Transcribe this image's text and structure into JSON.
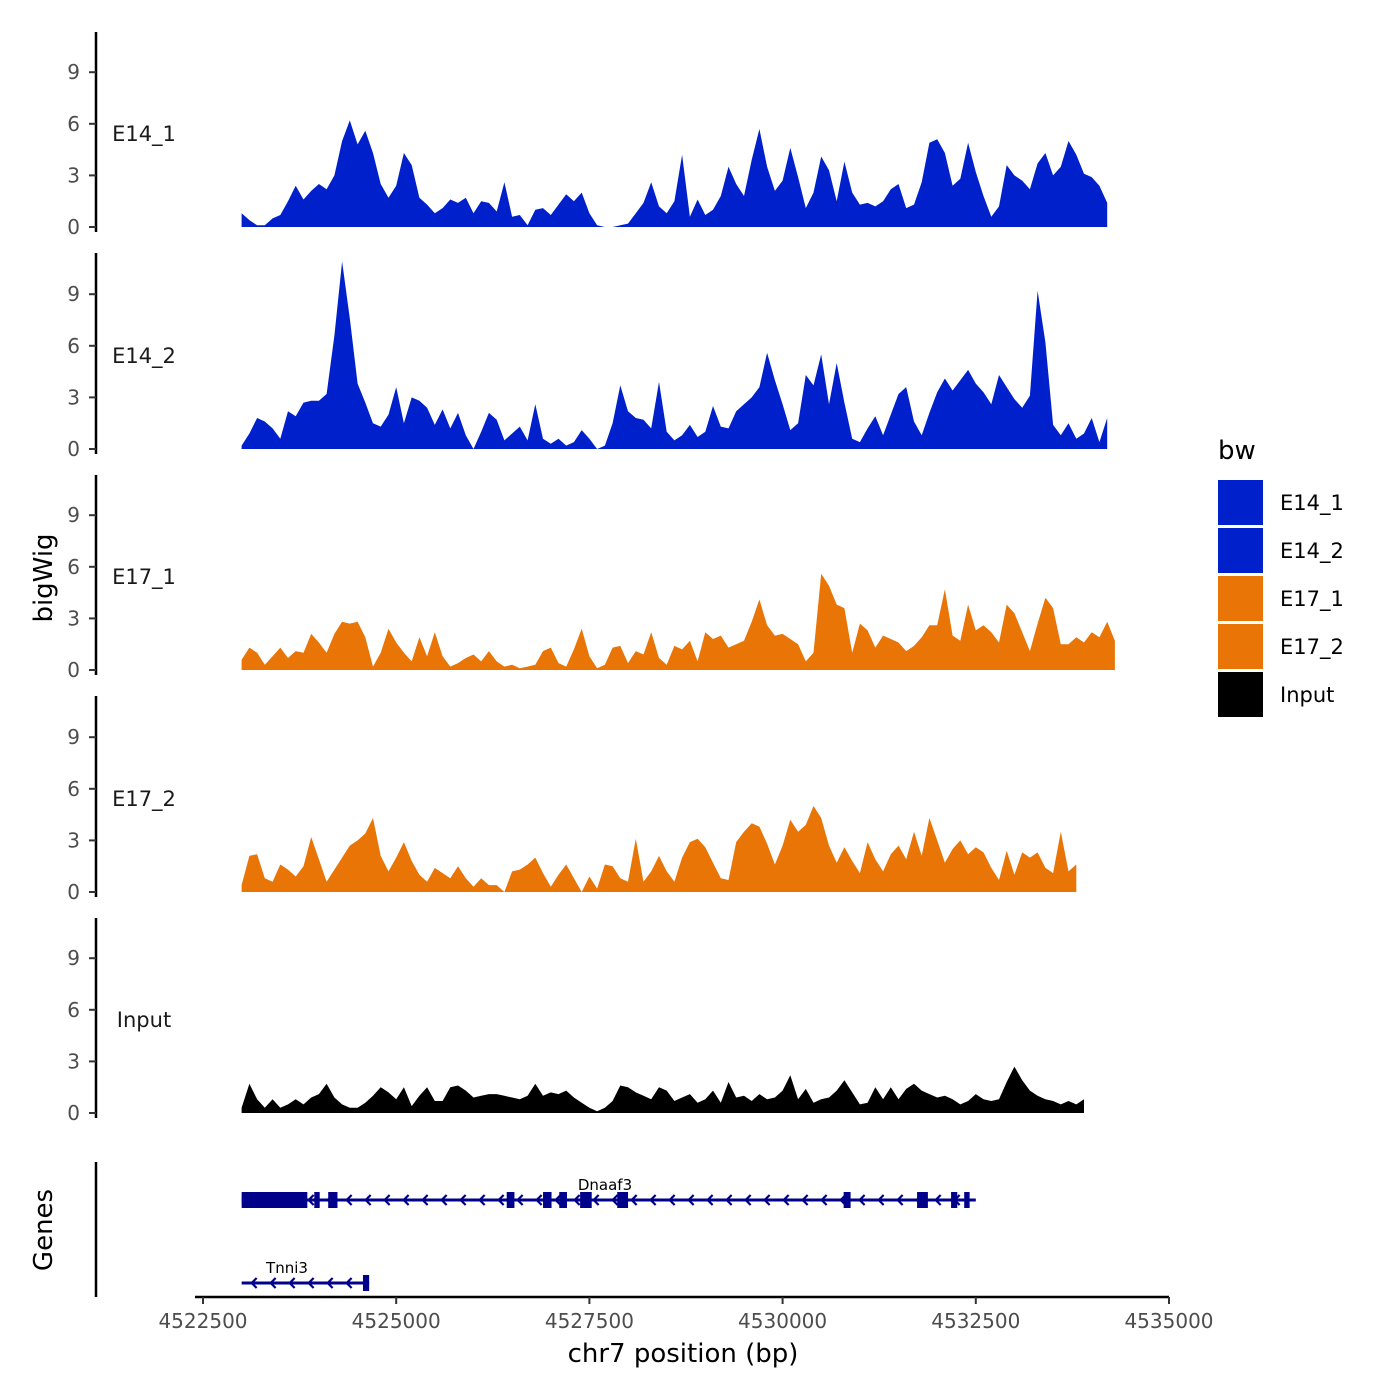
{
  "chart_data": {
    "type": "area",
    "chromosome": "chr7",
    "xlabel": "chr7 position (bp)",
    "ylabel": "bigWig",
    "genes_label": "Genes",
    "xlim": [
      4522500,
      4535000
    ],
    "x_ticks": [
      4522500,
      4525000,
      4527500,
      4530000,
      4532500,
      4535000
    ],
    "x_tick_labels": [
      "4522500",
      "4525000",
      "4527500",
      "4530000",
      "4532500",
      "4535000"
    ],
    "ylim": [
      0,
      11.5
    ],
    "y_ticks": [
      0,
      3,
      6,
      9
    ],
    "y_tick_labels": [
      "0",
      "3",
      "6",
      "9"
    ],
    "x_start": 4523000,
    "x_step": 100,
    "legend": {
      "title": "bw",
      "items": [
        {
          "name": "E14_1",
          "color": "#0020cc"
        },
        {
          "name": "E14_2",
          "color": "#0020cc"
        },
        {
          "name": "E17_1",
          "color": "#e87506"
        },
        {
          "name": "E17_2",
          "color": "#e87506"
        },
        {
          "name": "Input",
          "color": "#000000"
        }
      ]
    },
    "series": [
      {
        "name": "E14_1",
        "color": "#0020cc",
        "values": [
          0.8,
          0.4,
          0.1,
          0.1,
          0.5,
          0.7,
          1.5,
          2.4,
          1.6,
          2.1,
          2.5,
          2.2,
          3.0,
          5.0,
          6.2,
          4.8,
          5.6,
          4.3,
          2.5,
          1.7,
          2.4,
          4.3,
          3.6,
          1.7,
          1.3,
          0.8,
          1.1,
          1.6,
          1.4,
          1.7,
          0.8,
          1.5,
          1.4,
          0.9,
          2.6,
          0.6,
          0.7,
          0.1,
          1.0,
          1.1,
          0.7,
          1.3,
          1.9,
          1.5,
          2.0,
          0.8,
          0.1,
          0.0,
          0.0,
          0.1,
          0.2,
          0.8,
          1.4,
          2.6,
          1.2,
          0.8,
          1.5,
          4.2,
          0.6,
          1.6,
          0.7,
          1.0,
          1.8,
          3.5,
          2.5,
          1.8,
          3.9,
          5.7,
          3.5,
          2.1,
          2.7,
          4.6,
          2.9,
          1.1,
          2.0,
          4.1,
          3.3,
          1.5,
          3.8,
          2.0,
          1.3,
          1.4,
          1.2,
          1.5,
          2.2,
          2.5,
          1.1,
          1.3,
          2.6,
          4.9,
          5.1,
          4.3,
          2.4,
          2.8,
          4.9,
          3.2,
          1.8,
          0.6,
          1.2,
          3.6,
          3.0,
          2.7,
          2.2,
          3.7,
          4.3,
          3.0,
          3.5,
          5.0,
          4.2,
          3.1,
          2.9,
          2.4,
          1.4
        ]
      },
      {
        "name": "E14_2",
        "color": "#0020cc",
        "values": [
          0.2,
          0.9,
          1.8,
          1.6,
          1.2,
          0.6,
          2.2,
          1.9,
          2.7,
          2.8,
          2.8,
          3.2,
          6.6,
          10.9,
          7.6,
          3.8,
          2.7,
          1.5,
          1.3,
          2.0,
          3.6,
          1.5,
          3.0,
          2.8,
          2.4,
          1.4,
          2.3,
          1.2,
          2.1,
          0.8,
          0.0,
          1.0,
          2.1,
          1.7,
          0.5,
          0.9,
          1.3,
          0.5,
          2.6,
          0.6,
          0.3,
          0.6,
          0.2,
          0.4,
          1.1,
          0.6,
          0.0,
          0.2,
          1.5,
          3.7,
          2.2,
          1.8,
          1.7,
          1.2,
          3.9,
          1.0,
          0.5,
          0.8,
          1.4,
          0.7,
          1.0,
          2.5,
          1.3,
          1.2,
          2.2,
          2.6,
          3.0,
          3.6,
          5.6,
          4.0,
          2.6,
          1.1,
          1.5,
          4.3,
          3.7,
          5.5,
          2.6,
          5.0,
          2.7,
          0.6,
          0.4,
          1.2,
          1.9,
          0.8,
          2.0,
          3.2,
          3.6,
          1.6,
          0.8,
          2.1,
          3.3,
          4.1,
          3.4,
          4.0,
          4.6,
          3.8,
          3.3,
          2.6,
          4.3,
          3.6,
          2.9,
          2.4,
          3.1,
          9.2,
          6.2,
          1.4,
          0.8,
          1.5,
          0.6,
          0.9,
          1.8,
          0.4,
          1.8
        ]
      },
      {
        "name": "E17_1",
        "color": "#e87506",
        "values": [
          0.6,
          1.3,
          1.0,
          0.3,
          0.8,
          1.3,
          0.7,
          1.1,
          1.0,
          2.1,
          1.6,
          1.0,
          2.1,
          2.8,
          2.7,
          2.8,
          1.9,
          0.2,
          1.0,
          2.4,
          1.6,
          1.0,
          0.5,
          1.9,
          0.8,
          2.2,
          0.8,
          0.2,
          0.4,
          0.7,
          0.9,
          0.5,
          1.1,
          0.5,
          0.2,
          0.3,
          0.1,
          0.2,
          0.3,
          1.1,
          1.3,
          0.4,
          0.2,
          1.2,
          2.4,
          0.8,
          0.1,
          0.3,
          1.3,
          1.4,
          0.4,
          1.1,
          0.9,
          2.2,
          0.7,
          0.3,
          1.4,
          1.2,
          1.7,
          0.5,
          2.2,
          1.8,
          2.0,
          1.3,
          1.5,
          1.7,
          2.8,
          4.1,
          2.6,
          2.0,
          2.1,
          1.8,
          1.5,
          0.5,
          1.0,
          5.6,
          4.9,
          3.8,
          3.6,
          1.0,
          2.7,
          2.3,
          1.3,
          2.0,
          1.8,
          1.6,
          1.1,
          1.4,
          1.9,
          2.6,
          2.6,
          4.7,
          2.0,
          1.7,
          3.8,
          2.3,
          2.6,
          2.2,
          1.6,
          3.8,
          3.3,
          2.2,
          1.1,
          2.7,
          4.2,
          3.6,
          1.5,
          1.5,
          1.9,
          1.6,
          2.2,
          1.9,
          2.8,
          1.7
        ]
      },
      {
        "name": "E17_2",
        "color": "#e87506",
        "values": [
          0.4,
          2.1,
          2.2,
          0.8,
          0.6,
          1.6,
          1.3,
          0.9,
          1.5,
          3.2,
          1.9,
          0.6,
          1.3,
          2.0,
          2.7,
          3.0,
          3.4,
          4.3,
          2.1,
          1.2,
          2.0,
          2.9,
          1.8,
          1.0,
          0.6,
          1.4,
          1.1,
          0.8,
          1.5,
          0.8,
          0.3,
          0.8,
          0.4,
          0.4,
          0.0,
          1.2,
          1.3,
          1.6,
          2.0,
          1.1,
          0.3,
          1.0,
          1.6,
          0.8,
          0.0,
          0.9,
          0.2,
          1.6,
          1.5,
          0.8,
          0.6,
          3.1,
          0.6,
          1.2,
          2.1,
          1.2,
          0.6,
          2.0,
          2.9,
          3.1,
          2.6,
          1.7,
          0.8,
          0.7,
          2.9,
          3.5,
          4.0,
          3.8,
          2.8,
          1.6,
          2.7,
          4.2,
          3.5,
          3.9,
          5.0,
          4.3,
          2.7,
          1.7,
          2.6,
          1.8,
          1.1,
          2.9,
          1.9,
          1.2,
          2.2,
          2.7,
          1.9,
          3.5,
          2.1,
          4.3,
          3.0,
          1.7,
          2.5,
          3.0,
          2.2,
          2.6,
          2.3,
          1.4,
          0.7,
          2.4,
          1.0,
          2.3,
          2.0,
          2.3,
          1.4,
          1.1,
          3.5,
          1.2,
          1.6
        ]
      },
      {
        "name": "Input",
        "color": "#000000",
        "values": [
          0.3,
          1.7,
          0.8,
          0.3,
          0.8,
          0.3,
          0.5,
          0.8,
          0.5,
          0.9,
          1.1,
          1.7,
          0.9,
          0.5,
          0.3,
          0.3,
          0.6,
          1.0,
          1.5,
          1.2,
          0.8,
          1.5,
          0.4,
          1.0,
          1.5,
          0.7,
          0.7,
          1.5,
          1.6,
          1.3,
          0.9,
          1.0,
          1.1,
          1.1,
          1.0,
          0.9,
          0.8,
          1.0,
          1.7,
          1.0,
          1.2,
          1.1,
          1.3,
          0.9,
          0.6,
          0.3,
          0.1,
          0.3,
          0.7,
          1.6,
          1.5,
          1.2,
          1.0,
          0.8,
          1.5,
          1.3,
          0.7,
          0.9,
          1.1,
          0.6,
          0.8,
          1.3,
          0.6,
          1.8,
          0.9,
          1.0,
          0.7,
          1.1,
          0.8,
          0.9,
          1.3,
          2.2,
          0.8,
          1.4,
          0.6,
          0.8,
          0.9,
          1.3,
          1.9,
          1.2,
          0.5,
          0.6,
          1.5,
          0.8,
          1.5,
          0.8,
          1.4,
          1.7,
          1.3,
          1.1,
          0.9,
          1.0,
          0.8,
          0.5,
          0.7,
          1.1,
          0.8,
          0.7,
          0.8,
          1.8,
          2.7,
          1.9,
          1.3,
          1.0,
          0.8,
          0.7,
          0.5,
          0.7,
          0.5,
          0.8
        ]
      }
    ],
    "genes": [
      {
        "name": "Tnni3",
        "strand": "-",
        "start": 4523000,
        "end": 4524650,
        "exons": [
          [
            4524570,
            4524650
          ]
        ]
      },
      {
        "name": "Dnaaf3",
        "strand": "-",
        "start": 4523000,
        "end": 4532500,
        "exons": [
          [
            4523000,
            4523850
          ],
          [
            4523940,
            4524010
          ],
          [
            4524120,
            4524240
          ],
          [
            4526430,
            4526530
          ],
          [
            4526900,
            4527010
          ],
          [
            4527110,
            4527210
          ],
          [
            4527380,
            4527530
          ],
          [
            4527860,
            4528000
          ],
          [
            4530790,
            4530880
          ],
          [
            4531740,
            4531880
          ],
          [
            4532180,
            4532260
          ],
          [
            4532350,
            4532420
          ]
        ]
      }
    ]
  }
}
